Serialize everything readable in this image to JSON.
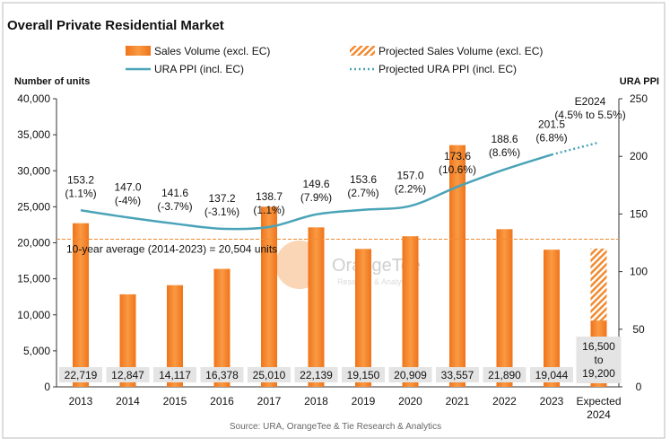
{
  "chart_data": {
    "type": "bar-line",
    "title": "Overall Private Residential Market",
    "y_axis_label": "Number of units",
    "y2_axis_label": "URA PPI",
    "source": "Source: URA, OrangeTee & Tie Research & Analytics",
    "watermark": "OrangeTee",
    "watermark_sub": "Research & Analytics",
    "categories": [
      "2013",
      "2014",
      "2015",
      "2016",
      "2017",
      "2018",
      "2019",
      "2020",
      "2021",
      "2022",
      "2023",
      "Expected 2024"
    ],
    "ylim": [
      0,
      40000
    ],
    "yticks": [
      0,
      {
        "value": 5000,
        "label": "5,000"
      },
      {
        "value": 10000,
        "label": "10,000"
      },
      {
        "value": 15000,
        "label": "15,000"
      },
      {
        "value": 20000,
        "label": "20,000"
      },
      {
        "value": 25000,
        "label": "25,000"
      },
      {
        "value": 30000,
        "label": "30,000"
      },
      {
        "value": 35000,
        "label": "35,000"
      },
      {
        "value": 40000,
        "label": "40,000"
      }
    ],
    "y2lim": [
      0,
      250
    ],
    "y2ticks": [
      0,
      50,
      100,
      150,
      200,
      250
    ],
    "series": [
      {
        "name": "Projected Sales Volume (excl. EC)",
        "kind": "bar",
        "hatched": true,
        "color": "#f28a30",
        "values": [
          null,
          null,
          null,
          null,
          null,
          null,
          null,
          null,
          null,
          null,
          null,
          19200
        ],
        "value_labels": [
          null,
          null,
          null,
          null,
          null,
          null,
          null,
          null,
          null,
          null,
          null,
          "16,500 to 19,200"
        ]
      },
      {
        "name": "Sales Volume (excl. EC)",
        "kind": "bar",
        "color": "#f47a1a",
        "values": [
          22719,
          12847,
          14117,
          16378,
          25010,
          22139,
          19150,
          20909,
          33557,
          21890,
          19044,
          9200
        ],
        "value_labels": [
          "22,719",
          "12,847",
          "14,117",
          "16,378",
          "25,010",
          "22,139",
          "19,150",
          "20,909",
          "33,557",
          "21,890",
          "19,044",
          null
        ]
      },
      {
        "name": "URA PPI (incl. EC)",
        "kind": "line",
        "axis": "y2",
        "color": "#4aa3b8",
        "values": [
          153.2,
          147.0,
          141.6,
          137.2,
          138.7,
          149.6,
          153.6,
          157.0,
          173.6,
          188.6,
          201.5,
          null
        ],
        "value_labels": [
          "153.2",
          "147.0",
          "141.6",
          "137.2",
          "138.7",
          "149.6",
          "153.6",
          "157.0",
          "173.6",
          "188.6",
          "201.5",
          null
        ],
        "change_labels": [
          "(1.1%)",
          "(-4%)",
          "(-3.7%)",
          "(-3.1%)",
          "(1.1%)",
          "(7.9%)",
          "(2.7%)",
          "(2.2%)",
          "(10.6%)",
          "(8.6%)",
          "(6.8%)",
          null
        ]
      },
      {
        "name": "Projected URA PPI (incl. EC)",
        "kind": "line",
        "axis": "y2",
        "dotted": true,
        "color": "#4aa3b8",
        "values": [
          null,
          null,
          null,
          null,
          null,
          null,
          null,
          null,
          null,
          null,
          201.5,
          212
        ]
      }
    ],
    "reference_line": {
      "value": 20504,
      "label": "10-year average (2014-2023) = 20,504 units",
      "color": "#f28a30"
    },
    "annotation": {
      "lines": [
        "E2024",
        "(4.5% to 5.5%)"
      ]
    }
  }
}
